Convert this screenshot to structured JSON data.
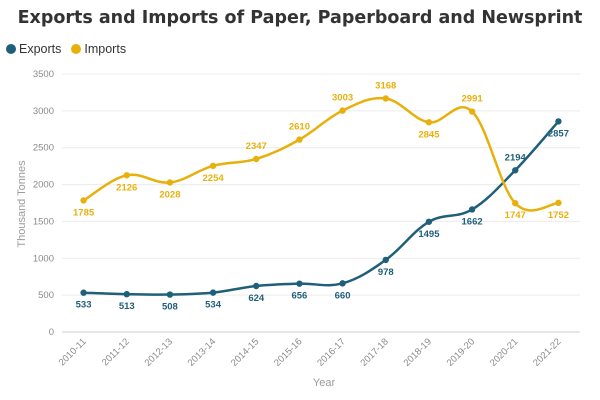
{
  "chart_data": {
    "type": "line",
    "title": "Exports and Imports of Paper, Paperboard and Newsprint",
    "xlabel": "Year",
    "ylabel": "Thousand Tonnes",
    "ylim": [
      0,
      3500
    ],
    "yticks": [
      0,
      500,
      1000,
      1500,
      2000,
      2500,
      3000,
      3500
    ],
    "grid": "horizontal",
    "legend_position": "top-left",
    "categories": [
      "2010-11",
      "2011-12",
      "2012-13",
      "2013-14",
      "2014-15",
      "2015-16",
      "2016-17",
      "2017-18",
      "2018-19",
      "2019-20",
      "2020-21",
      "2021-22"
    ],
    "series": [
      {
        "name": "Exports",
        "color": "#1f5f7a",
        "values": [
          533,
          513,
          508,
          534,
          624,
          656,
          660,
          978,
          1495,
          1662,
          2194,
          2857
        ]
      },
      {
        "name": "Imports",
        "color": "#e8b00c",
        "values": [
          1785,
          2126,
          2028,
          2254,
          2347,
          2610,
          3003,
          3168,
          2845,
          2991,
          1747,
          1752
        ]
      }
    ]
  }
}
